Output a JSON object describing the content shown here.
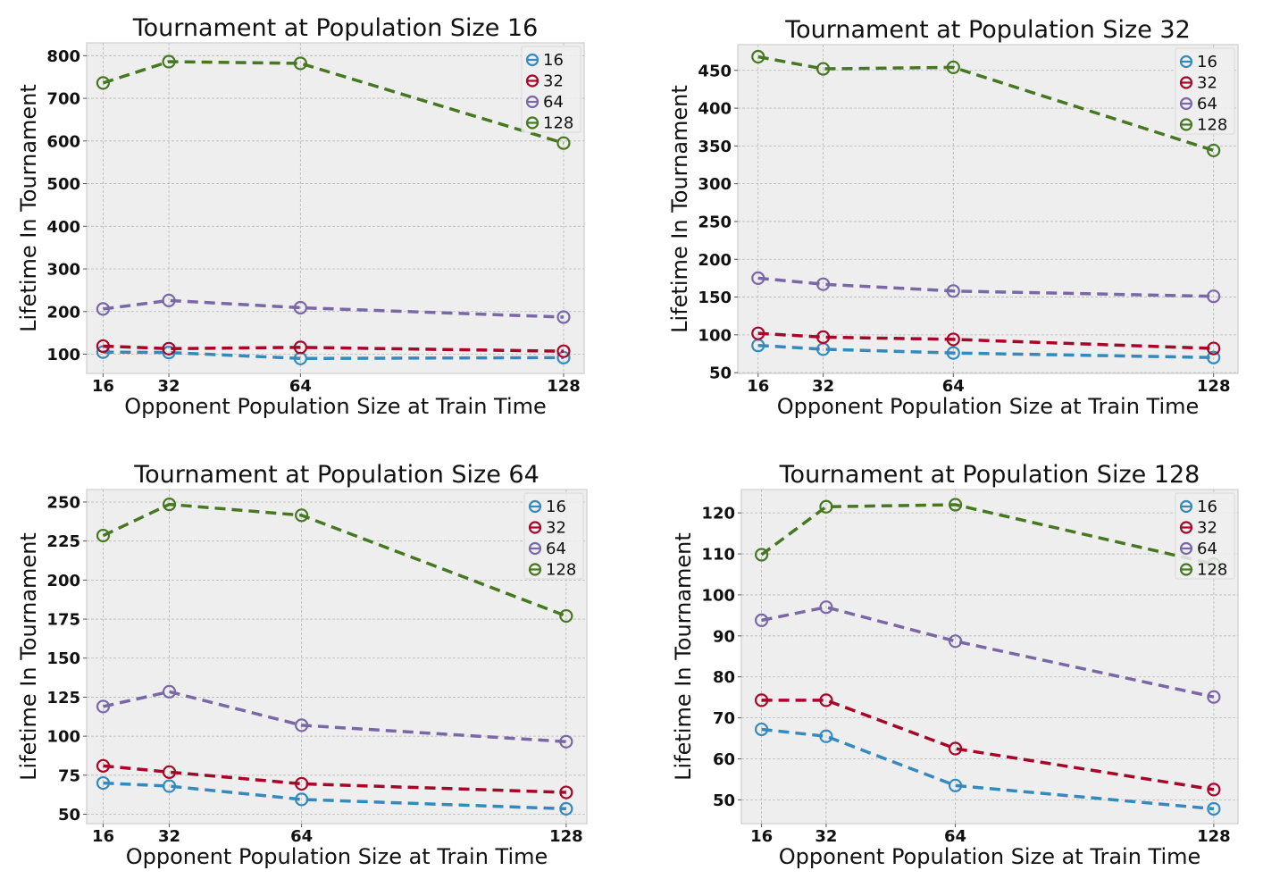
{
  "colors": {
    "background": "#EEEEEE",
    "grid": "#B8B8B8",
    "frame": "#D6D6D6",
    "series": {
      "16": "#348ABD",
      "32": "#A60628",
      "64": "#7A68A6",
      "128": "#467821"
    }
  },
  "chart_data": [
    {
      "type": "line",
      "title": "Tournament at Population Size 16",
      "xlabel": "Opponent Population Size at Train Time",
      "ylabel": "Lifetime In Tournament",
      "x": [
        16,
        32,
        64,
        128
      ],
      "xticks": [
        "16",
        "32",
        "64",
        "128"
      ],
      "xlim": [
        12,
        133
      ],
      "ylim": [
        55,
        830
      ],
      "yticks": [
        100,
        200,
        300,
        400,
        500,
        600,
        700,
        800
      ],
      "grid": true,
      "legend": "top-right",
      "series": [
        {
          "name": "16",
          "values": [
            105,
            104,
            90,
            92
          ]
        },
        {
          "name": "32",
          "values": [
            119,
            113,
            116,
            107
          ]
        },
        {
          "name": "64",
          "values": [
            206,
            226,
            209,
            187
          ]
        },
        {
          "name": "128",
          "values": [
            736,
            786,
            782,
            595
          ]
        }
      ]
    },
    {
      "type": "line",
      "title": "Tournament at Population Size 32",
      "xlabel": "Opponent Population Size at Train Time",
      "ylabel": "Lifetime In Tournament",
      "x": [
        16,
        32,
        64,
        128
      ],
      "xticks": [
        "16",
        "32",
        "64",
        "128"
      ],
      "xlim": [
        11,
        134
      ],
      "ylim": [
        49,
        484
      ],
      "yticks": [
        50,
        100,
        150,
        200,
        250,
        300,
        350,
        400,
        450
      ],
      "grid": true,
      "legend": "top-right",
      "series": [
        {
          "name": "16",
          "values": [
            86,
            81,
            76,
            70
          ]
        },
        {
          "name": "32",
          "values": [
            102,
            97,
            94,
            82
          ]
        },
        {
          "name": "64",
          "values": [
            175,
            167,
            158,
            151
          ]
        },
        {
          "name": "128",
          "values": [
            468,
            452,
            454,
            344
          ]
        }
      ]
    },
    {
      "type": "line",
      "title": "Tournament at Population Size 64",
      "xlabel": "Opponent Population Size at Train Time",
      "ylabel": "Lifetime In Tournament",
      "x": [
        16,
        32,
        64,
        128
      ],
      "xticks": [
        "16",
        "32",
        "64",
        "128"
      ],
      "xlim": [
        12,
        133
      ],
      "ylim": [
        44,
        258
      ],
      "yticks": [
        50,
        75,
        100,
        125,
        150,
        175,
        200,
        225,
        250
      ],
      "grid": true,
      "legend": "top-right",
      "series": [
        {
          "name": "16",
          "values": [
            70,
            68,
            59.5,
            53.5
          ]
        },
        {
          "name": "32",
          "values": [
            81,
            77,
            69.5,
            64
          ]
        },
        {
          "name": "64",
          "values": [
            119,
            128.5,
            107,
            96.5
          ]
        },
        {
          "name": "128",
          "values": [
            228.5,
            248.5,
            241.5,
            177
          ]
        }
      ]
    },
    {
      "type": "line",
      "title": "Tournament at Population Size 128",
      "xlabel": "Opponent Population Size at Train Time",
      "ylabel": "Lifetime In Tournament",
      "x": [
        16,
        32,
        64,
        128
      ],
      "xticks": [
        "16",
        "32",
        "64",
        "128"
      ],
      "xlim": [
        11,
        134
      ],
      "ylim": [
        44.2,
        125.7
      ],
      "yticks": [
        50,
        60,
        70,
        80,
        90,
        100,
        110,
        120
      ],
      "grid": true,
      "legend": "top-right",
      "series": [
        {
          "name": "16",
          "values": [
            67.2,
            65.5,
            53.5,
            47.8
          ]
        },
        {
          "name": "32",
          "values": [
            74.3,
            74.3,
            62.5,
            52.5
          ]
        },
        {
          "name": "64",
          "values": [
            93.8,
            97,
            88.7,
            75.1
          ]
        },
        {
          "name": "128",
          "values": [
            109.8,
            121.5,
            122,
            107.5
          ]
        }
      ]
    }
  ]
}
